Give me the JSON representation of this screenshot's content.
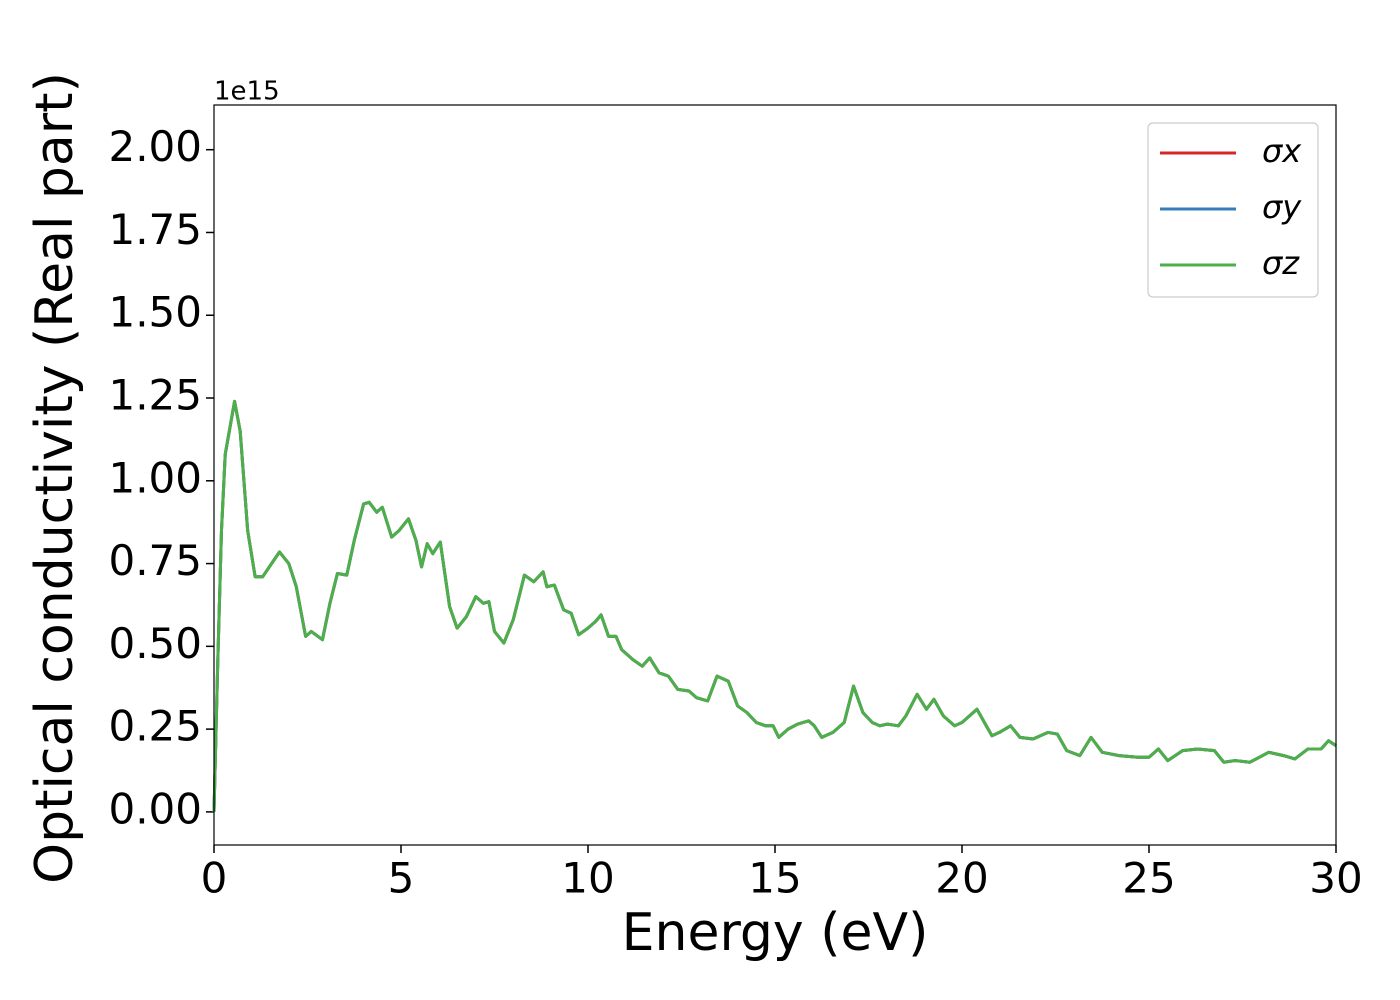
{
  "chart_data": {
    "type": "line",
    "y_label": "Optical conductivity (Real part)",
    "x_label": "Energy (eV)",
    "y_offset_label": "1e15",
    "xlim": [
      0,
      30
    ],
    "xticks": [
      0,
      5,
      10,
      15,
      20,
      25,
      30
    ],
    "ylim": [
      -0.1,
      2.135
    ],
    "yticks": [
      {
        "value": 0,
        "label": "0.00"
      },
      {
        "value": 0.25,
        "label": "0.25"
      },
      {
        "value": 0.5,
        "label": "0.50"
      },
      {
        "value": 0.75,
        "label": "0.75"
      },
      {
        "value": 1,
        "label": "1.00"
      },
      {
        "value": 1.25,
        "label": "1.25"
      },
      {
        "value": 1.5,
        "label": "1.50"
      },
      {
        "value": 1.75,
        "label": "1.75"
      },
      {
        "value": 2,
        "label": "2.00"
      }
    ],
    "grid": false,
    "legend": "upper right",
    "x": [
      0,
      0.1,
      0.2,
      0.3,
      0.55,
      0.7,
      0.9,
      1.1,
      1.3,
      1.6,
      1.75,
      2.0,
      2.2,
      2.45,
      2.6,
      2.9,
      3.1,
      3.3,
      3.55,
      3.75,
      4.0,
      4.15,
      4.35,
      4.5,
      4.75,
      4.95,
      5.2,
      5.4,
      5.55,
      5.7,
      5.85,
      6.05,
      6.3,
      6.5,
      6.75,
      7.0,
      7.2,
      7.35,
      7.5,
      7.75,
      8.0,
      8.3,
      8.55,
      8.8,
      8.9,
      9.1,
      9.35,
      9.55,
      9.75,
      10.0,
      10.2,
      10.35,
      10.55,
      10.75,
      10.9,
      11.2,
      11.45,
      11.65,
      11.9,
      12.15,
      12.4,
      12.7,
      12.9,
      13.2,
      13.45,
      13.75,
      14.0,
      14.25,
      14.5,
      14.75,
      14.95,
      15.1,
      15.35,
      15.6,
      15.9,
      16.05,
      16.25,
      16.55,
      16.85,
      17.1,
      17.35,
      17.6,
      17.8,
      18.0,
      18.3,
      18.5,
      18.8,
      19.05,
      19.25,
      19.5,
      19.8,
      20.0,
      20.4,
      20.8,
      21.0,
      21.3,
      21.55,
      21.9,
      22.3,
      22.55,
      22.8,
      23.15,
      23.45,
      23.75,
      24.2,
      24.7,
      25.0,
      25.25,
      25.5,
      25.9,
      26.3,
      26.75,
      27.0,
      27.3,
      27.7,
      28.2,
      28.6,
      28.9,
      29.25,
      29.6,
      29.8,
      30.0
    ],
    "series": [
      {
        "name": "σx",
        "color": "#d62728",
        "values": [
          0,
          0.45,
          0.85,
          1.08,
          1.24,
          1.15,
          0.85,
          0.71,
          0.71,
          0.76,
          0.785,
          0.75,
          0.68,
          0.53,
          0.545,
          0.52,
          0.63,
          0.72,
          0.715,
          0.82,
          0.93,
          0.935,
          0.905,
          0.92,
          0.83,
          0.85,
          0.885,
          0.82,
          0.74,
          0.81,
          0.78,
          0.815,
          0.62,
          0.555,
          0.59,
          0.65,
          0.63,
          0.635,
          0.545,
          0.51,
          0.58,
          0.715,
          0.695,
          0.725,
          0.68,
          0.685,
          0.61,
          0.6,
          0.535,
          0.555,
          0.575,
          0.595,
          0.53,
          0.53,
          0.49,
          0.46,
          0.44,
          0.465,
          0.42,
          0.41,
          0.37,
          0.365,
          0.345,
          0.335,
          0.41,
          0.395,
          0.32,
          0.3,
          0.27,
          0.26,
          0.26,
          0.225,
          0.25,
          0.265,
          0.275,
          0.26,
          0.225,
          0.24,
          0.27,
          0.38,
          0.3,
          0.27,
          0.26,
          0.265,
          0.26,
          0.29,
          0.355,
          0.31,
          0.34,
          0.29,
          0.26,
          0.27,
          0.31,
          0.23,
          0.24,
          0.26,
          0.225,
          0.22,
          0.24,
          0.235,
          0.185,
          0.17,
          0.225,
          0.18,
          0.17,
          0.165,
          0.165,
          0.19,
          0.155,
          0.185,
          0.19,
          0.185,
          0.15,
          0.155,
          0.15,
          0.18,
          0.17,
          0.16,
          0.19,
          0.19,
          0.215,
          0.2
        ]
      },
      {
        "name": "σy",
        "color": "#377eb8",
        "values": [
          0,
          0.45,
          0.85,
          1.08,
          1.24,
          1.15,
          0.85,
          0.71,
          0.71,
          0.76,
          0.785,
          0.75,
          0.68,
          0.53,
          0.545,
          0.52,
          0.63,
          0.72,
          0.715,
          0.82,
          0.93,
          0.935,
          0.905,
          0.92,
          0.83,
          0.85,
          0.885,
          0.82,
          0.74,
          0.81,
          0.78,
          0.815,
          0.62,
          0.555,
          0.59,
          0.65,
          0.63,
          0.635,
          0.545,
          0.51,
          0.58,
          0.715,
          0.695,
          0.725,
          0.68,
          0.685,
          0.61,
          0.6,
          0.535,
          0.555,
          0.575,
          0.595,
          0.53,
          0.53,
          0.49,
          0.46,
          0.44,
          0.465,
          0.42,
          0.41,
          0.37,
          0.365,
          0.345,
          0.335,
          0.41,
          0.395,
          0.32,
          0.3,
          0.27,
          0.26,
          0.26,
          0.225,
          0.25,
          0.265,
          0.275,
          0.26,
          0.225,
          0.24,
          0.27,
          0.38,
          0.3,
          0.27,
          0.26,
          0.265,
          0.26,
          0.29,
          0.355,
          0.31,
          0.34,
          0.29,
          0.26,
          0.27,
          0.31,
          0.23,
          0.24,
          0.26,
          0.225,
          0.22,
          0.24,
          0.235,
          0.185,
          0.17,
          0.225,
          0.18,
          0.17,
          0.165,
          0.165,
          0.19,
          0.155,
          0.185,
          0.19,
          0.185,
          0.15,
          0.155,
          0.15,
          0.18,
          0.17,
          0.16,
          0.19,
          0.19,
          0.215,
          0.2
        ]
      },
      {
        "name": "σz",
        "color": "#4daf4a",
        "values": [
          0,
          0.45,
          0.85,
          1.08,
          1.24,
          1.15,
          0.85,
          0.71,
          0.71,
          0.76,
          0.785,
          0.75,
          0.68,
          0.53,
          0.545,
          0.52,
          0.63,
          0.72,
          0.715,
          0.82,
          0.93,
          0.935,
          0.905,
          0.92,
          0.83,
          0.85,
          0.885,
          0.82,
          0.74,
          0.81,
          0.78,
          0.815,
          0.62,
          0.555,
          0.59,
          0.65,
          0.63,
          0.635,
          0.545,
          0.51,
          0.58,
          0.715,
          0.695,
          0.725,
          0.68,
          0.685,
          0.61,
          0.6,
          0.535,
          0.555,
          0.575,
          0.595,
          0.53,
          0.53,
          0.49,
          0.46,
          0.44,
          0.465,
          0.42,
          0.41,
          0.37,
          0.365,
          0.345,
          0.335,
          0.41,
          0.395,
          0.32,
          0.3,
          0.27,
          0.26,
          0.26,
          0.225,
          0.25,
          0.265,
          0.275,
          0.26,
          0.225,
          0.24,
          0.27,
          0.38,
          0.3,
          0.27,
          0.26,
          0.265,
          0.26,
          0.29,
          0.355,
          0.31,
          0.34,
          0.29,
          0.26,
          0.27,
          0.31,
          0.23,
          0.24,
          0.26,
          0.225,
          0.22,
          0.24,
          0.235,
          0.185,
          0.17,
          0.225,
          0.18,
          0.17,
          0.165,
          0.165,
          0.19,
          0.155,
          0.185,
          0.19,
          0.185,
          0.15,
          0.155,
          0.15,
          0.18,
          0.17,
          0.16,
          0.19,
          0.19,
          0.215,
          0.2
        ]
      }
    ]
  }
}
